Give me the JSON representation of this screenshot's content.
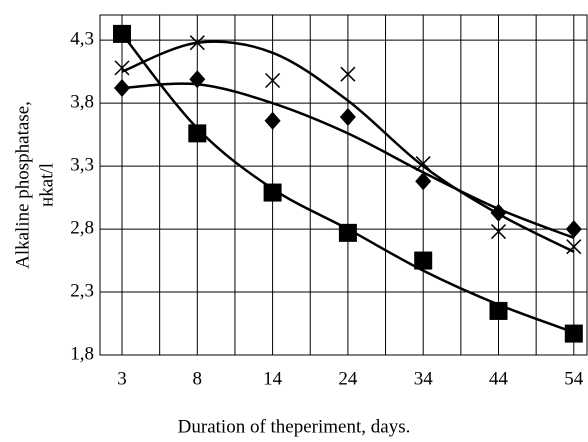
{
  "chart_data": {
    "type": "scatter",
    "xlabel": "Duration of theperiment, days.",
    "ylabel": [
      "Alkaline phosphatase,",
      "нkat/l"
    ],
    "categories": [
      "3",
      "8",
      "14",
      "24",
      "34",
      "44",
      "54"
    ],
    "ylim": [
      1.8,
      4.5
    ],
    "yticks": [
      {
        "value": 1.8,
        "label": "1,8"
      },
      {
        "value": 2.3,
        "label": "2,3"
      },
      {
        "value": 2.8,
        "label": "2,8"
      },
      {
        "value": 3.3,
        "label": "3,3"
      },
      {
        "value": 3.8,
        "label": "3,8"
      },
      {
        "value": 4.3,
        "label": "4,3"
      }
    ],
    "grid": true,
    "series": [
      {
        "marker": "square",
        "color": "#000000",
        "values": [
          4.35,
          3.56,
          3.09,
          2.77,
          2.55,
          2.15,
          1.97
        ],
        "trend": [
          4.35,
          3.6,
          3.12,
          2.8,
          2.47,
          2.2,
          1.98
        ]
      },
      {
        "marker": "diamond",
        "color": "#000000",
        "values": [
          3.92,
          3.99,
          3.66,
          3.69,
          3.18,
          2.93,
          2.8
        ],
        "trend": [
          3.92,
          3.95,
          3.8,
          3.56,
          3.25,
          2.96,
          2.73
        ]
      },
      {
        "marker": "cross",
        "color": "#000000",
        "values": [
          4.08,
          4.28,
          3.98,
          4.03,
          3.32,
          2.78,
          2.66
        ],
        "trend": [
          4.05,
          4.28,
          4.2,
          3.82,
          3.3,
          2.92,
          2.62
        ]
      }
    ]
  }
}
